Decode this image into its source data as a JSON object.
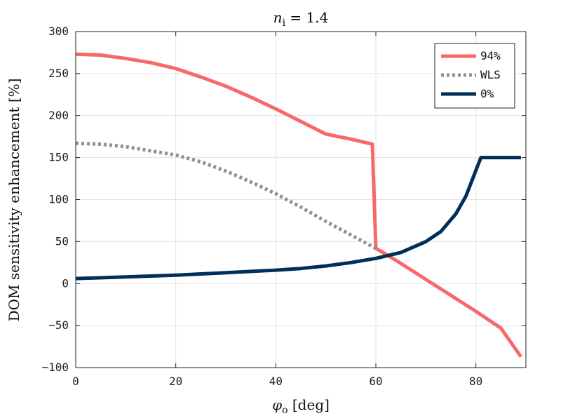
{
  "chart_data": {
    "type": "line",
    "title": "n_i = 1.4",
    "title_parts": {
      "var": "n",
      "sub": "i",
      "rest": " = 1.4"
    },
    "xlabel": "φ_o [deg]",
    "xlabel_parts": {
      "var": "φ",
      "sub": "o",
      "rest": " [deg]"
    },
    "ylabel": "DOM sensitivity enhancement [%]",
    "xlim": [
      0,
      90
    ],
    "ylim": [
      -100,
      300
    ],
    "xticks": [
      0,
      20,
      40,
      60,
      80
    ],
    "yticks": [
      -100,
      -50,
      0,
      50,
      100,
      150,
      200,
      250,
      300
    ],
    "grid": true,
    "legend_position": "top-right",
    "series": [
      {
        "name": "94%",
        "color": "#f86868",
        "style": "solid",
        "x": [
          0,
          5,
          10,
          15,
          20,
          25,
          30,
          35,
          40,
          45,
          50,
          55,
          59.3,
          60,
          62,
          65,
          70,
          75,
          80,
          85,
          89
        ],
        "y": [
          273,
          272,
          268,
          263,
          256,
          246,
          235,
          222,
          208,
          193,
          178,
          172,
          166,
          42,
          35,
          24,
          5,
          -14,
          -33,
          -53,
          -87
        ]
      },
      {
        "name": "WLS",
        "color": "#909090",
        "style": "dotted",
        "x": [
          0,
          5,
          10,
          15,
          20,
          25,
          30,
          35,
          40,
          45,
          50,
          55,
          60
        ],
        "y": [
          167,
          166,
          163,
          158,
          153,
          145,
          134,
          121,
          107,
          91,
          74,
          58,
          42
        ]
      },
      {
        "name": "0%",
        "color": "#00305a",
        "style": "solid",
        "x": [
          0,
          10,
          20,
          30,
          40,
          45,
          50,
          55,
          60,
          65,
          70,
          73,
          76,
          78,
          79.5,
          81,
          85,
          89
        ],
        "y": [
          6,
          8,
          10,
          13,
          16,
          18,
          21,
          25,
          30,
          37,
          50,
          62,
          83,
          104,
          127,
          150,
          150,
          150
        ]
      }
    ]
  }
}
